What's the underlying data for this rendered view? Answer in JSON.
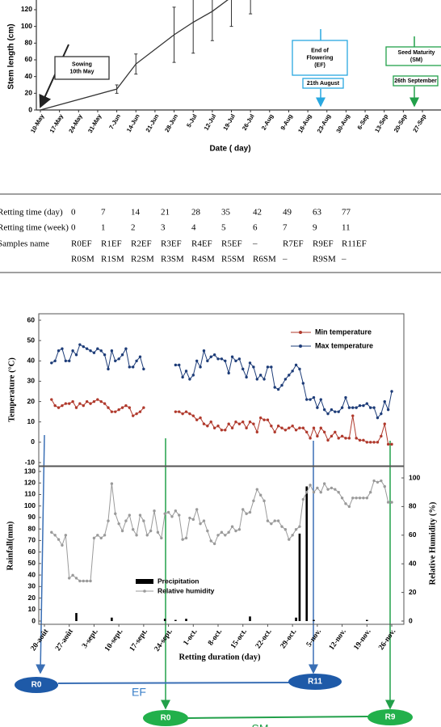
{
  "chart_data": [
    {
      "type": "line",
      "y_label": "Stem length (cm)",
      "x_label": "Date ( day)",
      "categories": [
        "10-May",
        "17-May",
        "24-May",
        "31-May",
        "7-Jun",
        "14-Jun",
        "21-Jun",
        "28-Jun",
        "5-Jul",
        "12-Jul",
        "19-Jul",
        "26-Jul",
        "2-Aug",
        "9-Aug",
        "16-Aug",
        "23-Aug",
        "30-Aug",
        "6-Sep",
        "13-Sep",
        "20-Sep",
        "27-Sep"
      ],
      "series": [
        {
          "color": "#333333",
          "x": [
            "10-May",
            "7-Jun",
            "14-Jun",
            "28-Jun",
            "5-Jul",
            "12-Jul",
            "19-Jul",
            "26-Jul"
          ],
          "values": [
            0,
            25,
            55,
            90,
            105,
            118,
            135,
            140
          ],
          "errors": [
            null,
            5,
            12,
            33,
            37,
            35,
            35,
            25
          ]
        }
      ],
      "ylim": [
        0,
        140
      ],
      "yticks": [
        0,
        20,
        40,
        60,
        80,
        100,
        120
      ],
      "annotations": [
        {
          "lines": [
            "Sowing",
            "10th May"
          ]
        },
        {
          "lines": [
            "End of",
            "Flowering",
            "(EF)"
          ]
        },
        {
          "lines": [
            "21th August"
          ]
        },
        {
          "lines": [
            "Seed Maturity",
            "(SM)"
          ]
        },
        {
          "lines": [
            "26th September"
          ]
        }
      ]
    },
    {
      "type": "line",
      "y_label": "Temperature (°C)",
      "legend": "top-right",
      "series": [
        {
          "name": "Min temperature",
          "color": "#b0392c",
          "values": [
            null,
            null,
            21,
            18,
            17,
            18,
            19,
            19,
            20,
            17,
            19,
            18,
            20,
            19,
            20,
            21,
            20,
            19,
            17,
            15,
            15,
            16,
            17,
            18,
            17,
            13,
            14,
            15,
            17,
            null,
            null,
            null,
            null,
            null,
            null,
            null,
            null,
            15,
            15,
            14,
            15,
            14,
            13,
            11,
            12,
            9,
            8,
            10,
            7,
            8,
            6,
            6,
            9,
            7,
            10,
            9,
            10,
            7,
            10,
            9,
            5,
            12,
            11,
            11,
            8,
            5,
            8,
            7,
            6,
            7,
            8,
            6,
            7,
            7,
            5,
            2,
            7,
            3,
            7,
            5,
            1,
            3,
            5,
            2,
            3,
            2,
            2,
            13,
            2,
            1,
            1,
            0,
            0,
            0,
            0,
            3,
            9,
            -1,
            -1,
            null,
            null
          ]
        },
        {
          "name": "Max temperature",
          "color": "#1d3c78",
          "values": [
            null,
            null,
            39,
            40,
            45,
            46,
            40,
            40,
            45,
            43,
            48,
            47,
            46,
            45,
            44,
            46,
            45,
            43,
            36,
            45,
            40,
            41,
            43,
            46,
            37,
            37,
            40,
            42,
            36,
            null,
            null,
            null,
            null,
            null,
            null,
            null,
            null,
            38,
            38,
            32,
            35,
            31,
            33,
            40,
            37,
            45,
            40,
            42,
            43,
            41,
            41,
            40,
            34,
            42,
            40,
            41,
            36,
            32,
            39,
            37,
            31,
            33,
            31,
            37,
            37,
            27,
            26,
            28,
            31,
            33,
            35,
            38,
            36,
            29,
            21,
            21,
            22,
            17,
            21,
            16,
            14,
            16,
            15,
            15,
            17,
            22,
            17,
            17,
            17,
            18,
            18,
            19,
            17,
            17,
            12,
            14,
            20,
            16,
            25,
            null,
            null
          ]
        }
      ],
      "ylim": [
        -10,
        60
      ],
      "yticks": [
        -10,
        0,
        10,
        20,
        30,
        40,
        50,
        60
      ]
    },
    {
      "type": "combo",
      "y_label": "Rainfall(mm)",
      "y2_label": "Relative Humidity (%)",
      "x_label": "Retting duration (day)",
      "categories": [
        "20-août",
        null,
        null,
        null,
        null,
        null,
        null,
        "27-août",
        null,
        null,
        null,
        null,
        null,
        null,
        "3-sept.",
        null,
        null,
        null,
        null,
        null,
        null,
        "10-sept.",
        null,
        null,
        null,
        null,
        null,
        null,
        "17-sept.",
        null,
        null,
        null,
        null,
        null,
        null,
        "24-sept.",
        null,
        null,
        null,
        null,
        null,
        null,
        "1-oct.",
        null,
        null,
        null,
        null,
        null,
        null,
        "8-oct.",
        null,
        null,
        null,
        null,
        null,
        null,
        "15-oct.",
        null,
        null,
        null,
        null,
        null,
        null,
        "22-oct.",
        null,
        null,
        null,
        null,
        null,
        null,
        "29-oct.",
        null,
        null,
        null,
        null,
        null,
        null,
        "5-nov.",
        null,
        null,
        null,
        null,
        null,
        null,
        "12-nov.",
        null,
        null,
        null,
        null,
        null,
        null,
        "19-nov.",
        null,
        null,
        null,
        null,
        null,
        null,
        "26-nov.",
        null,
        null
      ],
      "series": [
        {
          "name": "Precipitation",
          "type": "bar",
          "color": "#000000",
          "values": [
            0,
            0,
            0,
            0,
            0,
            0,
            0,
            0,
            0,
            7,
            0,
            0,
            0,
            0,
            0,
            0,
            0,
            0,
            0,
            3,
            0,
            0,
            0,
            0,
            0,
            0,
            0,
            0,
            0,
            0,
            0,
            0,
            0,
            0,
            2,
            0,
            0,
            1,
            0,
            0,
            2,
            0,
            0,
            0,
            0,
            0,
            0,
            0,
            0,
            0,
            0,
            0,
            0,
            0,
            0,
            0,
            0,
            0,
            4,
            0,
            0,
            0,
            0,
            0,
            0,
            0,
            0,
            0,
            0,
            0,
            0,
            3,
            76,
            0,
            117,
            0,
            1,
            0,
            0,
            0,
            0,
            0,
            0,
            0,
            0,
            0,
            0,
            0,
            0,
            0,
            0,
            1,
            0,
            0,
            0,
            0,
            0,
            0,
            0,
            0,
            0
          ]
        },
        {
          "name": "Relative humidity",
          "type": "line",
          "axis": "y2",
          "color": "#9a9a9a",
          "values": [
            null,
            null,
            62,
            60,
            57,
            53,
            60,
            30,
            32,
            30,
            28,
            28,
            28,
            28,
            58,
            60,
            58,
            60,
            70,
            96,
            75,
            68,
            63,
            70,
            74,
            64,
            60,
            74,
            70,
            60,
            63,
            77,
            62,
            58,
            75,
            76,
            73,
            77,
            74,
            57,
            58,
            72,
            71,
            78,
            68,
            70,
            63,
            56,
            54,
            60,
            62,
            60,
            62,
            66,
            63,
            64,
            78,
            75,
            76,
            84,
            92,
            88,
            84,
            70,
            68,
            70,
            70,
            66,
            64,
            57,
            60,
            64,
            66,
            85,
            90,
            95,
            90,
            93,
            90,
            96,
            92,
            93,
            92,
            90,
            86,
            82,
            80,
            86,
            86,
            86,
            86,
            86,
            90,
            98,
            97,
            98,
            94,
            83,
            83,
            null,
            null
          ]
        }
      ],
      "ylim": [
        0,
        130
      ],
      "yticks": [
        0,
        10,
        20,
        30,
        40,
        50,
        60,
        70,
        80,
        90,
        100,
        110,
        120,
        130
      ],
      "y2lim": [
        0,
        100
      ],
      "y2ticks": [
        0,
        20,
        40,
        60,
        80,
        100
      ],
      "legend": "middle-left"
    }
  ],
  "table": {
    "rows": [
      [
        "Retting time (day)",
        "0",
        "7",
        "14",
        "21",
        "28",
        "35",
        "42",
        "49",
        "63",
        "77"
      ],
      [
        "Retting time (week)",
        "0",
        "1",
        "2",
        "3",
        "4",
        "5",
        "6",
        "7",
        "9",
        "11"
      ],
      [
        "Samples name",
        "R0EF",
        "R1EF",
        "R2EF",
        "R3EF",
        "R4EF",
        "R5EF",
        "–",
        "R7EF",
        "R9EF",
        "R11EF"
      ],
      [
        null,
        "R0SM",
        "R1SM",
        "R2SM",
        "R3SM",
        "R4SM",
        "R5SM",
        "R6SM",
        "–",
        "R9SM",
        "–"
      ]
    ]
  },
  "diagram": {
    "ef": {
      "start": "R0",
      "end": "R11",
      "label": "EF"
    },
    "sm": {
      "start": "R0",
      "end": "R9",
      "label": "SM"
    }
  }
}
